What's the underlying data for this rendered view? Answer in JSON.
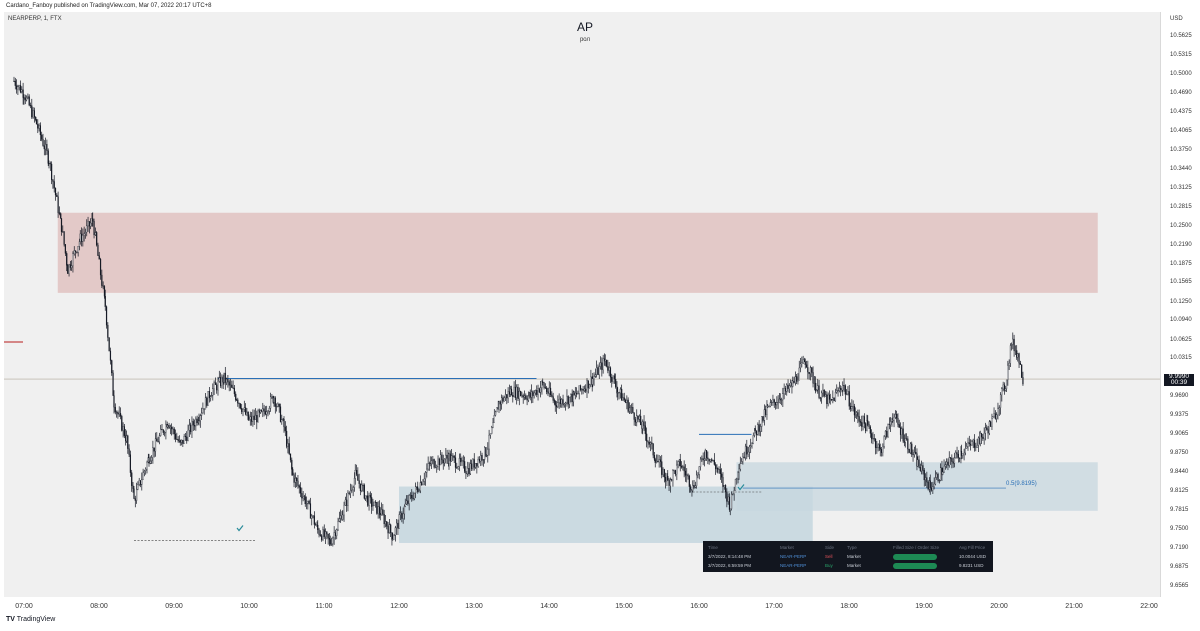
{
  "header": {
    "published": "Cardano_Fanboy published on TradingView.com, Mar 07, 2022 20:17 UTC+8",
    "symbol": "NEARPERP, 1, FTX",
    "title": "AP",
    "subtitle": "рол"
  },
  "axis": {
    "currency": "USD",
    "y_ticks": [
      "10.5625",
      "10.5315",
      "10.5000",
      "10.4690",
      "10.4375",
      "10.4065",
      "10.3750",
      "10.3440",
      "10.3125",
      "10.2815",
      "10.2500",
      "10.2190",
      "10.1875",
      "10.1565",
      "10.1250",
      "10.0940",
      "10.0625",
      "10.0315",
      "9.9690",
      "9.9375",
      "9.9065",
      "9.8750",
      "9.8440",
      "9.8125",
      "9.7815",
      "9.7500",
      "9.7190",
      "9.6875",
      "9.6565"
    ],
    "x_ticks": [
      "07:00",
      "08:00",
      "09:00",
      "10:00",
      "11:00",
      "12:00",
      "13:00",
      "14:00",
      "15:00",
      "16:00",
      "17:00",
      "18:00",
      "19:00",
      "20:00",
      "21:00",
      "22:00"
    ]
  },
  "last_price": {
    "value": "9.9990",
    "countdown": "00:39"
  },
  "fib_label": "0.5(9.8195)",
  "footer": {
    "brand": "TradingView"
  },
  "colors": {
    "supply_zone": "#e3c9c8",
    "demand_zone": "#c7d7df",
    "trend_line": "#2a6fb6",
    "candle": "#131722",
    "check": "#2a8c9a"
  },
  "chart_data": {
    "type": "candlestick",
    "symbol": "NEARPERP",
    "timeframe": "1",
    "exchange": "FTX",
    "ylim": [
      9.64,
      10.6
    ],
    "x_range": [
      "06:50",
      "22:30"
    ],
    "close_path": [
      [
        "06:52",
        10.49
      ],
      [
        "07:00",
        10.47
      ],
      [
        "07:10",
        10.42
      ],
      [
        "07:20",
        10.36
      ],
      [
        "07:30",
        10.25
      ],
      [
        "07:35",
        10.18
      ],
      [
        "07:45",
        10.23
      ],
      [
        "07:55",
        10.26
      ],
      [
        "08:05",
        10.12
      ],
      [
        "08:12",
        9.96
      ],
      [
        "08:22",
        9.9
      ],
      [
        "08:28",
        9.8
      ],
      [
        "08:40",
        9.87
      ],
      [
        "08:55",
        9.93
      ],
      [
        "09:05",
        9.89
      ],
      [
        "09:20",
        9.94
      ],
      [
        "09:30",
        9.98
      ],
      [
        "09:40",
        10.0
      ],
      [
        "09:50",
        9.97
      ],
      [
        "10:00",
        9.93
      ],
      [
        "10:10",
        9.94
      ],
      [
        "10:20",
        9.97
      ],
      [
        "10:28",
        9.92
      ],
      [
        "10:35",
        9.84
      ],
      [
        "10:45",
        9.8
      ],
      [
        "10:55",
        9.75
      ],
      [
        "11:05",
        9.73
      ],
      [
        "11:15",
        9.78
      ],
      [
        "11:25",
        9.84
      ],
      [
        "11:35",
        9.8
      ],
      [
        "11:45",
        9.78
      ],
      [
        "11:55",
        9.74
      ],
      [
        "12:05",
        9.79
      ],
      [
        "12:15",
        9.82
      ],
      [
        "12:25",
        9.86
      ],
      [
        "12:40",
        9.87
      ],
      [
        "12:55",
        9.85
      ],
      [
        "13:10",
        9.88
      ],
      [
        "13:20",
        9.96
      ],
      [
        "13:30",
        9.98
      ],
      [
        "13:45",
        9.97
      ],
      [
        "13:55",
        9.99
      ],
      [
        "14:05",
        9.96
      ],
      [
        "14:20",
        9.97
      ],
      [
        "14:35",
        10.0
      ],
      [
        "14:45",
        10.03
      ],
      [
        "14:55",
        9.98
      ],
      [
        "15:05",
        9.95
      ],
      [
        "15:15",
        9.92
      ],
      [
        "15:25",
        9.87
      ],
      [
        "15:35",
        9.83
      ],
      [
        "15:45",
        9.86
      ],
      [
        "15:55",
        9.82
      ],
      [
        "16:05",
        9.88
      ],
      [
        "16:15",
        9.85
      ],
      [
        "16:25",
        9.79
      ],
      [
        "16:32",
        9.86
      ],
      [
        "16:45",
        9.91
      ],
      [
        "16:55",
        9.95
      ],
      [
        "17:05",
        9.97
      ],
      [
        "17:15",
        9.99
      ],
      [
        "17:25",
        10.03
      ],
      [
        "17:35",
        9.98
      ],
      [
        "17:45",
        9.96
      ],
      [
        "17:55",
        9.99
      ],
      [
        "18:05",
        9.94
      ],
      [
        "18:15",
        9.92
      ],
      [
        "18:25",
        9.88
      ],
      [
        "18:35",
        9.94
      ],
      [
        "18:45",
        9.9
      ],
      [
        "18:55",
        9.86
      ],
      [
        "19:05",
        9.82
      ],
      [
        "19:15",
        9.85
      ],
      [
        "19:30",
        9.88
      ],
      [
        "19:45",
        9.9
      ],
      [
        "19:55",
        9.93
      ],
      [
        "20:05",
        9.99
      ],
      [
        "20:10",
        10.06
      ],
      [
        "20:15",
        10.04
      ],
      [
        "20:20",
        9.99
      ]
    ],
    "supply_zone": {
      "time": [
        "07:27",
        "21:19"
      ],
      "price": [
        10.141,
        10.273
      ]
    },
    "demand_zone_1": {
      "time": [
        "12:00",
        "17:31"
      ],
      "price": [
        9.729,
        9.822
      ]
    },
    "demand_zone_2": {
      "time": [
        "16:30",
        "21:19"
      ],
      "price": [
        9.782,
        9.862
      ]
    },
    "fib_level": {
      "ratio": 0.5,
      "price": 9.8195,
      "time_start": "16:35"
    },
    "horizontal_lines": [
      {
        "price": 10.0,
        "time": [
          "09:35",
          "13:50"
        ]
      },
      {
        "price": 9.908,
        "time": [
          "16:00",
          "16:42"
        ]
      }
    ],
    "dashed_lines": [
      {
        "price": 9.733,
        "time": [
          "08:28",
          "10:05"
        ]
      },
      {
        "price": 9.813,
        "time": [
          "15:55",
          "16:50"
        ]
      }
    ],
    "last_price": 9.999
  },
  "trades_table": {
    "headers": [
      "Time",
      "Market",
      "Side",
      "Type",
      "Filled Size / Order Size",
      "Avg Fill Price"
    ],
    "rows": [
      {
        "time": "3/7/2022, 8:14:48 PM",
        "market": "NEAR-PERP",
        "side": "Sell",
        "type": "Market",
        "price": "10.0044 USD"
      },
      {
        "time": "3/7/2022, 6:59:59 PM",
        "market": "NEAR-PERP",
        "side": "Buy",
        "type": "Market",
        "price": "9.8231 USD"
      }
    ]
  }
}
